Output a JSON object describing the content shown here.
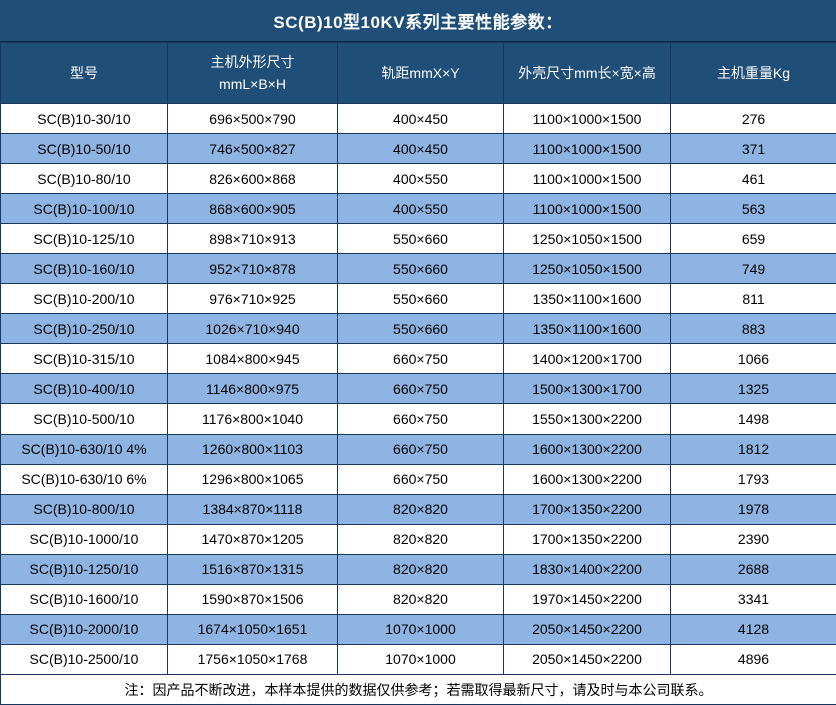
{
  "title": "SC(B)10型10KV系列主要性能参数：",
  "table": {
    "columns": [
      {
        "label": "型号"
      },
      {
        "label": "主机外形尺寸\nmmL×B×H"
      },
      {
        "label": "轨距mmX×Y"
      },
      {
        "label": "外壳尺寸mm长×宽×高"
      },
      {
        "label": "主机重量Kg"
      }
    ],
    "rows": [
      [
        "SC(B)10-30/10",
        "696×500×790",
        "400×450",
        "1100×1000×1500",
        "276"
      ],
      [
        "SC(B)10-50/10",
        "746×500×827",
        "400×450",
        "1100×1000×1500",
        "371"
      ],
      [
        "SC(B)10-80/10",
        "826×600×868",
        "400×550",
        "1100×1000×1500",
        "461"
      ],
      [
        "SC(B)10-100/10",
        "868×600×905",
        "400×550",
        "1100×1000×1500",
        "563"
      ],
      [
        "SC(B)10-125/10",
        "898×710×913",
        "550×660",
        "1250×1050×1500",
        "659"
      ],
      [
        "SC(B)10-160/10",
        "952×710×878",
        "550×660",
        "1250×1050×1500",
        "749"
      ],
      [
        "SC(B)10-200/10",
        "976×710×925",
        "550×660",
        "1350×1100×1600",
        "811"
      ],
      [
        "SC(B)10-250/10",
        "1026×710×940",
        "550×660",
        "1350×1100×1600",
        "883"
      ],
      [
        "SC(B)10-315/10",
        "1084×800×945",
        "660×750",
        "1400×1200×1700",
        "1066"
      ],
      [
        "SC(B)10-400/10",
        "1146×800×975",
        "660×750",
        "1500×1300×1700",
        "1325"
      ],
      [
        "SC(B)10-500/10",
        "1176×800×1040",
        "660×750",
        "1550×1300×2200",
        "1498"
      ],
      [
        "SC(B)10-630/10 4%",
        "1260×800×1103",
        "660×750",
        "1600×1300×2200",
        "1812"
      ],
      [
        "SC(B)10-630/10 6%",
        "1296×800×1065",
        "660×750",
        "1600×1300×2200",
        "1793"
      ],
      [
        "SC(B)10-800/10",
        "1384×870×1118",
        "820×820",
        "1700×1350×2200",
        "1978"
      ],
      [
        "SC(B)10-1000/10",
        "1470×870×1205",
        "820×820",
        "1700×1350×2200",
        "2390"
      ],
      [
        "SC(B)10-1250/10",
        "1516×870×1315",
        "820×820",
        "1830×1400×2200",
        "2688"
      ],
      [
        "SC(B)10-1600/10",
        "1590×870×1506",
        "820×820",
        "1970×1450×2200",
        "3341"
      ],
      [
        "SC(B)10-2000/10",
        "1674×1050×1651",
        "1070×1000",
        "2050×1450×2200",
        "4128"
      ],
      [
        "SC(B)10-2500/10",
        "1756×1050×1768",
        "1070×1000",
        "2050×1450×2200",
        "4896"
      ]
    ]
  },
  "note": "注：因产品不断改进，本样本提供的数据仅供参考；若需取得最新尺寸，请及时与本公司联系。",
  "colors": {
    "title_header_bg": "#1F4E79",
    "row_alt_bg": "#8DB4E2",
    "row_bg": "#FFFFFF",
    "border": "#17375E",
    "header_text": "#FFFFFF",
    "body_text": "#000000"
  }
}
